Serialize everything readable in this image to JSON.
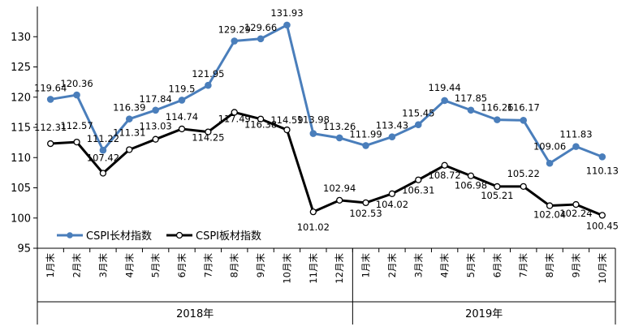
{
  "chart_data": {
    "type": "line",
    "categories": [
      "1月末",
      "2月末",
      "3月末",
      "4月末",
      "5月末",
      "6月末",
      "7月末",
      "8月末",
      "9月末",
      "10月末",
      "11月末",
      "12月末",
      "1月末",
      "2月末",
      "3月末",
      "4月末",
      "5月末",
      "6月末",
      "7月末",
      "8月末",
      "9月末",
      "10月末"
    ],
    "year_groups": [
      {
        "label": "2018年",
        "span": 12
      },
      {
        "label": "2019年",
        "span": 10
      }
    ],
    "series": [
      {
        "name": "CSPI长材指数",
        "color": "#4a7ebb",
        "values": [
          119.64,
          120.36,
          111.22,
          116.39,
          117.84,
          119.5,
          121.95,
          129.29,
          129.66,
          131.93,
          113.98,
          113.26,
          111.99,
          113.43,
          115.45,
          119.44,
          117.85,
          116.26,
          116.17,
          109.06,
          111.83,
          110.13
        ]
      },
      {
        "name": "CSPI板材指数",
        "color": "#000000",
        "values": [
          112.31,
          112.57,
          107.42,
          111.31,
          113.03,
          114.74,
          114.25,
          117.49,
          116.38,
          114.59,
          101.02,
          102.94,
          102.53,
          104.02,
          106.31,
          108.72,
          106.98,
          105.21,
          105.22,
          102.04,
          102.24,
          100.45
        ]
      }
    ],
    "ylim": [
      95,
      135
    ],
    "yticks": [
      "95",
      "100",
      "105",
      "110",
      "115",
      "120",
      "125",
      "130"
    ],
    "legend_position": "lower-left",
    "grid": false
  }
}
